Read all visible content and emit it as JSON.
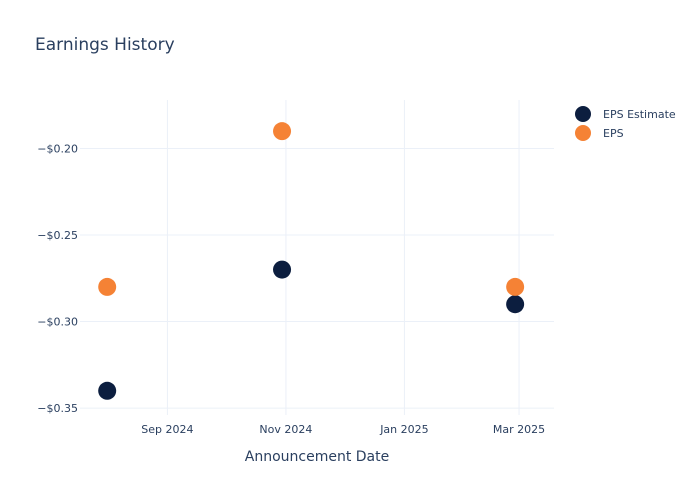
{
  "chart_data": {
    "type": "scatter",
    "title": "Earnings History",
    "xlabel": "Announcement Date",
    "ylabel": "",
    "x_ticks": [
      {
        "date": "2024-09-01",
        "label": "Sep 2024"
      },
      {
        "date": "2024-11-01",
        "label": "Nov 2024"
      },
      {
        "date": "2025-01-01",
        "label": "Jan 2025"
      },
      {
        "date": "2025-03-01",
        "label": "Mar 2025"
      }
    ],
    "y_ticks": [
      {
        "value": -0.2,
        "label": "−$0.20"
      },
      {
        "value": -0.25,
        "label": "−$0.25"
      },
      {
        "value": -0.3,
        "label": "−$0.30"
      },
      {
        "value": -0.35,
        "label": "−$0.35"
      }
    ],
    "xlim": [
      "2024-07-18",
      "2025-03-19"
    ],
    "ylim": [
      -0.354,
      -0.172
    ],
    "grid": true,
    "legend_position": "top-right",
    "series": [
      {
        "name": "EPS Estimate",
        "color": "#0c1e3f",
        "points": [
          {
            "x": "2024-08-01",
            "y": -0.34
          },
          {
            "x": "2024-10-30",
            "y": -0.27
          },
          {
            "x": "2025-02-27",
            "y": -0.29
          }
        ]
      },
      {
        "name": "EPS",
        "color": "#f58235",
        "points": [
          {
            "x": "2024-08-01",
            "y": -0.28
          },
          {
            "x": "2024-10-30",
            "y": -0.19
          },
          {
            "x": "2025-02-27",
            "y": -0.28
          }
        ]
      }
    ]
  }
}
